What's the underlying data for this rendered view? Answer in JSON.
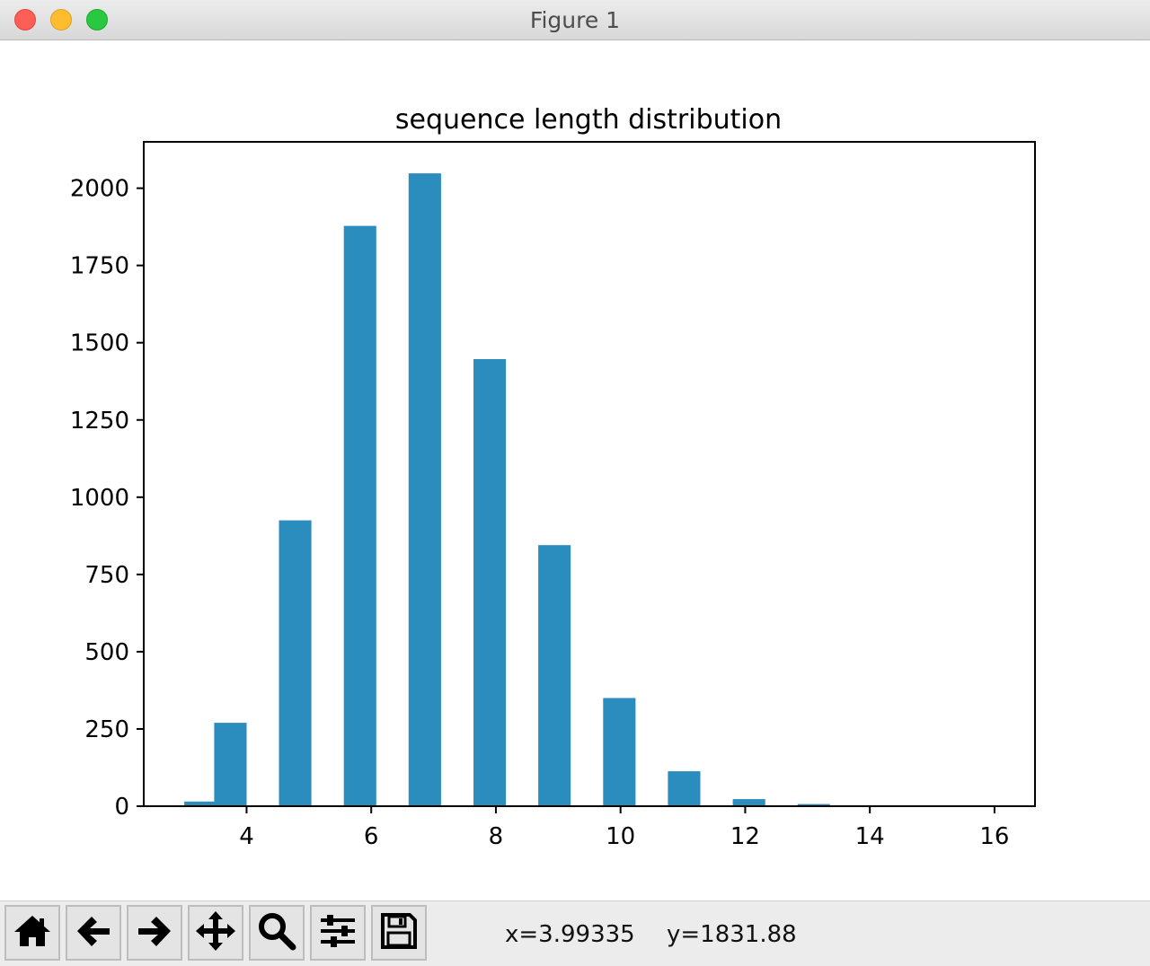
{
  "window": {
    "title": "Figure 1",
    "controls": [
      "close",
      "minimize",
      "zoom"
    ]
  },
  "toolbar": {
    "buttons": [
      {
        "icon": "home-icon"
      },
      {
        "icon": "back-arrow-icon"
      },
      {
        "icon": "forward-arrow-icon"
      },
      {
        "icon": "pan-move-icon"
      },
      {
        "icon": "zoom-magnifier-icon"
      },
      {
        "icon": "configure-subplots-icon"
      },
      {
        "icon": "save-floppy-icon"
      }
    ],
    "x_readout": "x=3.99335",
    "y_readout": "y=1831.88"
  },
  "chart_data": {
    "type": "bar",
    "title": "sequence length distribution",
    "xlabel": "",
    "ylabel": "",
    "bar_color": "#2b8cbe",
    "bin_width": 0.52,
    "bars": [
      {
        "x_left": 3.0,
        "value": 15
      },
      {
        "x_left": 3.48,
        "value": 270
      },
      {
        "x_left": 4.52,
        "value": 925
      },
      {
        "x_left": 5.56,
        "value": 1878
      },
      {
        "x_left": 6.6,
        "value": 2048
      },
      {
        "x_left": 7.64,
        "value": 1447
      },
      {
        "x_left": 8.68,
        "value": 845
      },
      {
        "x_left": 9.72,
        "value": 350
      },
      {
        "x_left": 10.76,
        "value": 113
      },
      {
        "x_left": 11.8,
        "value": 23
      },
      {
        "x_left": 12.84,
        "value": 7
      },
      {
        "x_left": 13.88,
        "value": 1
      },
      {
        "x_left": 14.92,
        "value": 1
      },
      {
        "x_left": 15.48,
        "value": 1
      }
    ],
    "xlim": [
      2.35,
      16.65
    ],
    "ylim": [
      0,
      2150
    ],
    "xticks": [
      4,
      6,
      8,
      10,
      12,
      14,
      16
    ],
    "xtick_labels": [
      "4",
      "6",
      "8",
      "10",
      "12",
      "14",
      "16"
    ],
    "yticks": [
      0,
      250,
      500,
      750,
      1000,
      1250,
      1500,
      1750,
      2000
    ],
    "ytick_labels": [
      "0",
      "250",
      "500",
      "750",
      "1000",
      "1250",
      "1500",
      "1750",
      "2000"
    ],
    "grid": false,
    "legend": "none"
  }
}
